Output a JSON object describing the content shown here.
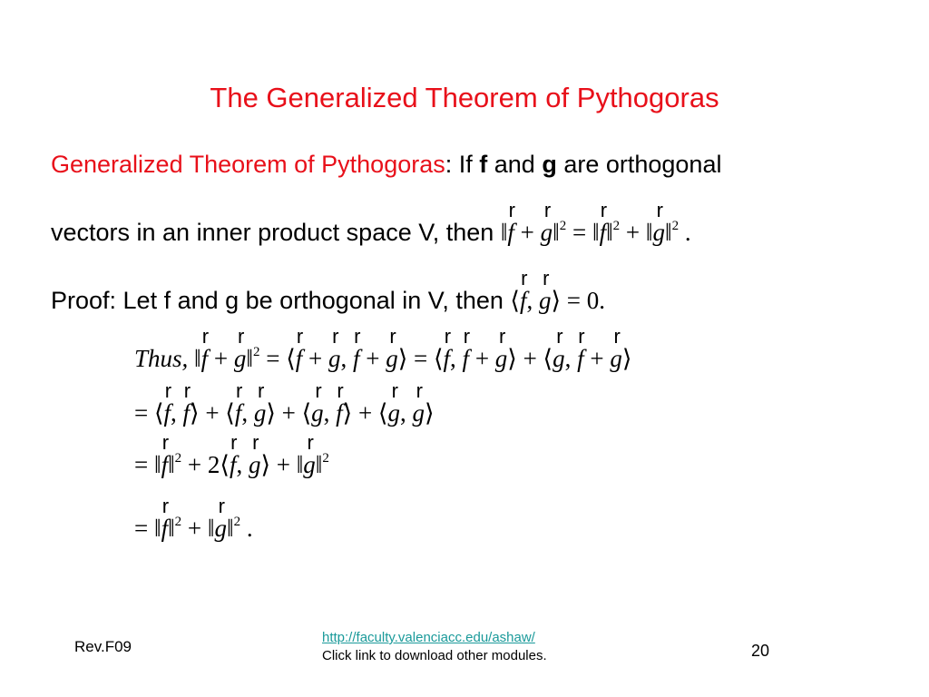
{
  "title": "The Generalized Theorem of Pythogoras",
  "statement": {
    "theorem_name": "Generalized Theorem of Pythogoras",
    "text_a": ": If ",
    "f": "f",
    "and": " and ",
    "g": "g",
    "text_b": " are orthogonal",
    "line2": "vectors in an inner product space V, then ",
    "line2_math": "‖{f} + {g}‖^2 = ‖{f}‖^2 + ‖{g}‖^2 ."
  },
  "proof": {
    "text": "Proof: Let f and g be orthogonal in V, then ",
    "math": "⟨{f}, {g}⟩ = 0."
  },
  "equations": [
    "Thus,  ‖{f} + {g}‖^2 = ⟨{f} + {g}, {f} + {g}⟩ = ⟨{f}, {f} + {g}⟩ + ⟨{g}, {f} + {g}⟩",
    "= ⟨{f}, {f}⟩ + ⟨{f}, {g}⟩ + ⟨{g}, {f}⟩ + ⟨{g}, {g}⟩",
    "= ‖{f}‖^2 + 2⟨{f}, {g}⟩ + ‖{g}‖^2",
    "= ‖{f}‖^2 + ‖{g}‖^2 ."
  ],
  "footer": {
    "revision": "Rev.F09",
    "link": "http://faculty.valenciacc.edu/ashaw/",
    "note": "Click link to download other modules.",
    "page": "20"
  },
  "colors": {
    "accent": "#e8101a",
    "link": "#1a9a9a"
  }
}
